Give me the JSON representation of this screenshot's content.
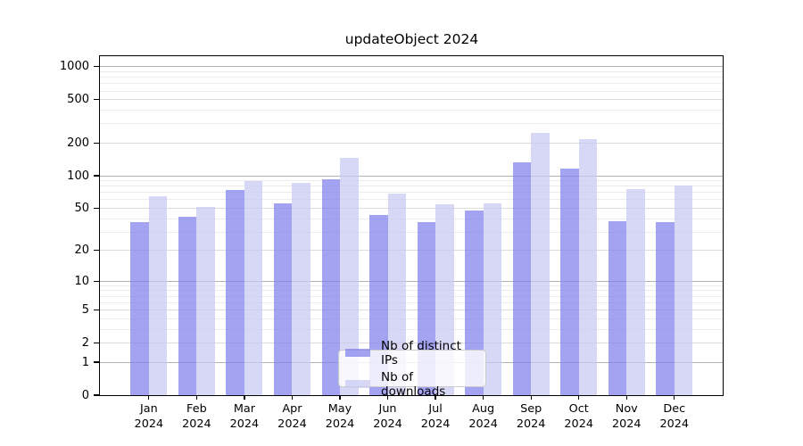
{
  "title": "updateObject 2024",
  "chart_data": {
    "type": "bar",
    "title": "updateObject 2024",
    "categories": [
      "Jan 2024",
      "Feb 2024",
      "Mar 2024",
      "Apr 2024",
      "May 2024",
      "Jun 2024",
      "Jul 2024",
      "Aug 2024",
      "Sep 2024",
      "Oct 2024",
      "Nov 2024",
      "Dec 2024"
    ],
    "series": [
      {
        "name": "Nb of distinct IPs",
        "color": "#a3a3f0",
        "fill": "rgba(127,127,235,0.72)",
        "values": [
          37,
          42,
          74,
          56,
          93,
          43,
          37,
          48,
          133,
          116,
          38,
          37
        ]
      },
      {
        "name": "Nb of downloads",
        "color": "#d8d8f5",
        "fill": "rgba(200,200,243,0.72)",
        "values": [
          65,
          51,
          90,
          86,
          146,
          68,
          55,
          56,
          250,
          217,
          76,
          82
        ]
      }
    ],
    "xlabel": "",
    "ylabel": "",
    "yscale": "log1p",
    "ylim": [
      0,
      1250
    ],
    "yticks_labeled": [
      0,
      1,
      2,
      5,
      10,
      20,
      50,
      100,
      200,
      500,
      1000
    ],
    "yticks_decade": [
      1,
      10,
      100,
      1000
    ],
    "yticks_mid": [
      2,
      5,
      20,
      50,
      200,
      500
    ],
    "yticks_minor": [
      3,
      4,
      6,
      7,
      8,
      9,
      30,
      40,
      60,
      70,
      80,
      90,
      300,
      400,
      600,
      700,
      800,
      900
    ],
    "grid": "on",
    "legend_position": "bottom-center"
  },
  "grid_colors": {
    "decade": "#b3b3b3",
    "mid": "#dcdcdc",
    "minor": "#ececec"
  },
  "legend": {
    "items": [
      {
        "label": "Nb of distinct IPs",
        "swatch": "distinct-ips"
      },
      {
        "label": "Nb of downloads",
        "swatch": "downloads"
      }
    ]
  }
}
